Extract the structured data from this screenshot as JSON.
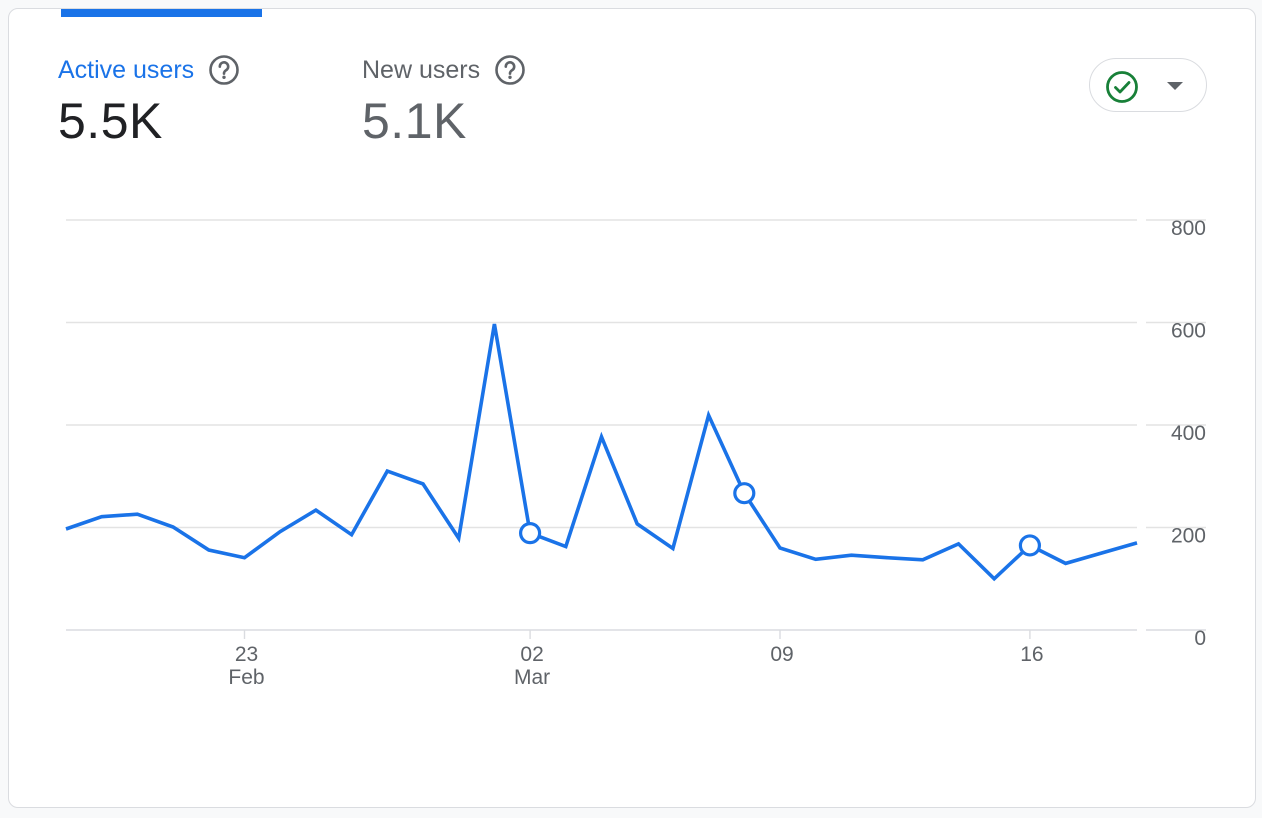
{
  "metrics": {
    "active_users": {
      "label": "Active users",
      "value": "5.5K"
    },
    "new_users": {
      "label": "New users",
      "value": "5.1K"
    }
  },
  "colors": {
    "accent": "#1a73e8",
    "check": "#188038",
    "grid": "#e3e3e3",
    "muted": "#5f6368"
  },
  "icons": {
    "help": "help-circle-icon",
    "status": "check-circle-icon",
    "menu": "caret-down-icon"
  },
  "chart_data": {
    "type": "line",
    "x": [
      "2024-02-18",
      "2024-02-19",
      "2024-02-20",
      "2024-02-21",
      "2024-02-22",
      "2024-02-23",
      "2024-02-24",
      "2024-02-25",
      "2024-02-26",
      "2024-02-27",
      "2024-02-28",
      "2024-02-29",
      "2024-03-01",
      "2024-03-02",
      "2024-03-03",
      "2024-03-04",
      "2024-03-05",
      "2024-03-06",
      "2024-03-07",
      "2024-03-08",
      "2024-03-09",
      "2024-03-10",
      "2024-03-11",
      "2024-03-12",
      "2024-03-13",
      "2024-03-14",
      "2024-03-15",
      "2024-03-16",
      "2024-03-17",
      "2024-03-18",
      "2024-03-19"
    ],
    "series": [
      {
        "values": [
          197,
          221,
          226,
          201,
          156,
          141,
          192,
          234,
          186,
          310,
          285,
          179,
          597,
          189,
          163,
          377,
          207,
          159,
          419,
          267,
          160,
          138,
          146,
          141,
          137,
          168,
          100,
          165,
          130,
          150,
          170
        ],
        "highlighted": [
          "2024-03-02",
          "2024-03-08",
          "2024-03-16"
        ]
      }
    ],
    "xticks": [
      {
        "date": "2024-02-23",
        "day": "23",
        "month": "Feb"
      },
      {
        "date": "2024-03-02",
        "day": "02",
        "month": "Mar"
      },
      {
        "date": "2024-03-09",
        "day": "09",
        "month": ""
      },
      {
        "date": "2024-03-16",
        "day": "16",
        "month": ""
      }
    ],
    "yticks": [
      0,
      200,
      400,
      600,
      800
    ],
    "ylim": [
      0,
      800
    ],
    "grid": true
  }
}
